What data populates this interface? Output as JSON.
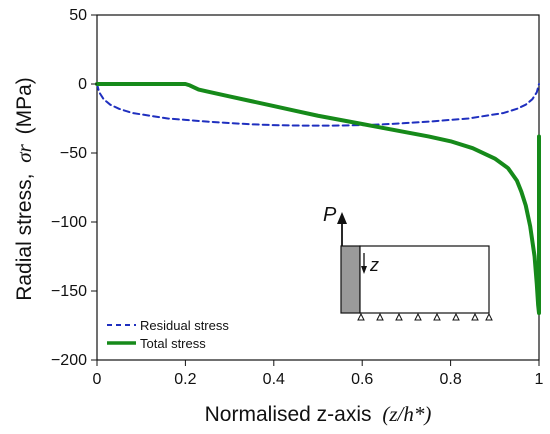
{
  "chart_data": {
    "type": "line",
    "title": "",
    "xlabel": "Normalised z-axis",
    "xlabel_math": "(z/h*)",
    "ylabel": "Radial stress,",
    "ylabel_math": "σr",
    "ylabel_unit": "(MPa)",
    "xlim": [
      0,
      1
    ],
    "ylim": [
      -200,
      50
    ],
    "xticks": [
      0,
      0.2,
      0.4,
      0.6,
      0.8,
      1
    ],
    "xtick_labels": [
      "0",
      "0.2",
      "0.4",
      "0.6",
      "0.8",
      "1"
    ],
    "yticks": [
      -200,
      -150,
      -100,
      -50,
      0,
      50
    ],
    "ytick_labels": [
      "−200",
      "−150",
      "−100",
      "−50",
      "0",
      "50"
    ],
    "grid": false,
    "legend_position": "bottom-left",
    "series": [
      {
        "name": "Residual stress",
        "style": "dashed",
        "color": "#1f2fbf",
        "points": [
          [
            0,
            0
          ],
          [
            0.005,
            -6
          ],
          [
            0.015,
            -11
          ],
          [
            0.03,
            -15
          ],
          [
            0.05,
            -18
          ],
          [
            0.08,
            -21
          ],
          [
            0.12,
            -23
          ],
          [
            0.16,
            -25
          ],
          [
            0.2,
            -26
          ],
          [
            0.25,
            -27.3
          ],
          [
            0.3,
            -28.3
          ],
          [
            0.35,
            -29.2
          ],
          [
            0.4,
            -29.8
          ],
          [
            0.45,
            -30.1
          ],
          [
            0.5,
            -30.2
          ],
          [
            0.55,
            -30.1
          ],
          [
            0.6,
            -29.8
          ],
          [
            0.65,
            -29.2
          ],
          [
            0.7,
            -28.3
          ],
          [
            0.75,
            -27.3
          ],
          [
            0.8,
            -26
          ],
          [
            0.84,
            -25
          ],
          [
            0.88,
            -23
          ],
          [
            0.92,
            -21
          ],
          [
            0.95,
            -18
          ],
          [
            0.97,
            -15
          ],
          [
            0.985,
            -11
          ],
          [
            0.995,
            -6
          ],
          [
            1,
            0
          ]
        ]
      },
      {
        "name": "Total stress",
        "style": "solid",
        "color": "#168a1a",
        "points": [
          [
            0,
            0
          ],
          [
            0.05,
            0
          ],
          [
            0.1,
            0
          ],
          [
            0.15,
            0
          ],
          [
            0.2,
            0
          ],
          [
            0.21,
            -1
          ],
          [
            0.23,
            -4
          ],
          [
            0.25,
            -5.5
          ],
          [
            0.3,
            -9
          ],
          [
            0.35,
            -12.5
          ],
          [
            0.4,
            -16
          ],
          [
            0.45,
            -19.5
          ],
          [
            0.5,
            -23
          ],
          [
            0.55,
            -26
          ],
          [
            0.6,
            -29
          ],
          [
            0.65,
            -32
          ],
          [
            0.7,
            -35
          ],
          [
            0.75,
            -38
          ],
          [
            0.8,
            -41.5
          ],
          [
            0.85,
            -46.5
          ],
          [
            0.9,
            -54
          ],
          [
            0.93,
            -61
          ],
          [
            0.95,
            -70
          ],
          [
            0.96,
            -78
          ],
          [
            0.97,
            -88
          ],
          [
            0.98,
            -103
          ],
          [
            0.99,
            -125
          ],
          [
            0.995,
            -145
          ],
          [
            0.998,
            -160
          ],
          [
            1,
            -166
          ],
          [
            1,
            -38
          ]
        ]
      }
    ]
  },
  "inset": {
    "load_label": "P",
    "depth_label": "z"
  },
  "colors": {
    "axes": "#111111",
    "inset_fill": "#9a9a9a"
  }
}
